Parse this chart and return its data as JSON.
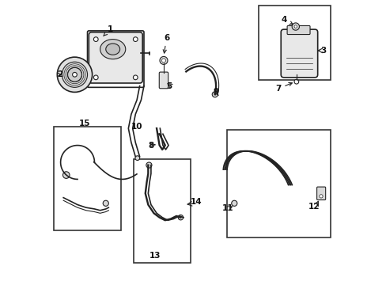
{
  "bg_color": "#ffffff",
  "line_color": "#222222",
  "box_color": "#333333",
  "label_color": "#111111",
  "fig_width": 4.89,
  "fig_height": 3.6,
  "dpi": 100
}
